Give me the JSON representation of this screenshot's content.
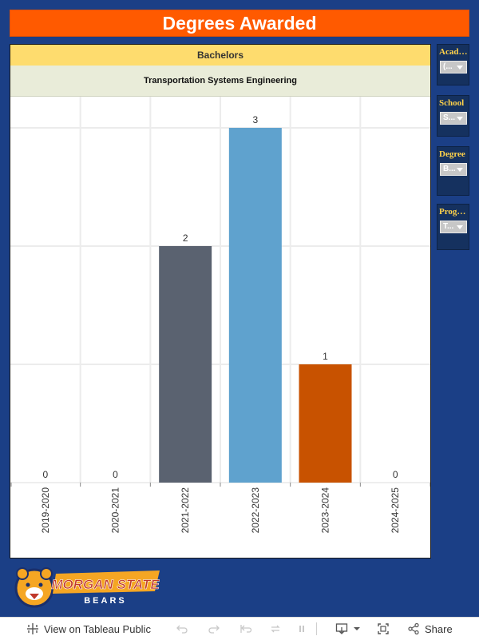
{
  "title": "Degrees Awarded",
  "header": {
    "degree": "Bachelors",
    "program": "Transportation Systems Engineering"
  },
  "filters": [
    {
      "label": "Academic Year",
      "value": "(..."
    },
    {
      "label": "School",
      "value": "S..."
    },
    {
      "label": "Degree",
      "value": "B..."
    },
    {
      "label": "Program",
      "value": "T..."
    }
  ],
  "chart_data": {
    "type": "bar",
    "categories": [
      "2019-2020",
      "2020-2021",
      "2021-2022",
      "2022-2023",
      "2023-2024",
      "2024-2025"
    ],
    "values": [
      0,
      0,
      2,
      3,
      1,
      0
    ],
    "bar_colors": [
      "#5a6270",
      "#5a6270",
      "#5a6270",
      "#5fa2ce",
      "#c85200",
      "#5a6270"
    ],
    "ylim": [
      0,
      3
    ],
    "grid": true,
    "title": "",
    "xlabel": "",
    "ylabel": ""
  },
  "logo": {
    "line1": "MORGAN STATE",
    "line2": "BEARS"
  },
  "toolbar": {
    "view_label": "View on Tableau Public",
    "share_label": "Share"
  },
  "colors": {
    "background": "#1b3f86",
    "title_bar": "#ff5a00",
    "header_yellow": "#fedc6e",
    "header_green": "#e9ecd9",
    "filter_label": "#ffd24a"
  }
}
